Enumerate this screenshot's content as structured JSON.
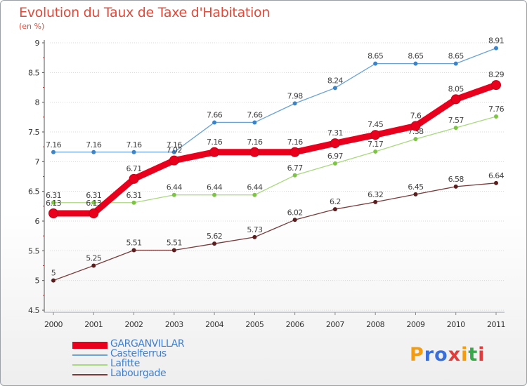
{
  "title": "Evolution du Taux de Taxe d'Habitation",
  "subtitle": "(en %)",
  "brand": {
    "letters": [
      "P",
      "r",
      "o",
      "x",
      "i",
      "t",
      "i"
    ],
    "colors": [
      "#f39c12",
      "#3a6fd8",
      "#3a6fd8",
      "#e23b3b",
      "#f39c12",
      "#3aa84a",
      "#e23b3b"
    ]
  },
  "chart_data": {
    "type": "line",
    "x": [
      "2000",
      "2001",
      "2002",
      "2003",
      "2004",
      "2005",
      "2006",
      "2007",
      "2008",
      "2009",
      "2010",
      "2011"
    ],
    "ylim": [
      4.5,
      9
    ],
    "yticks": [
      "4.5",
      "5",
      "5.5",
      "6",
      "6.5",
      "7",
      "7.5",
      "8",
      "8.5",
      "9"
    ],
    "legend_position": "bottom-left",
    "series": [
      {
        "name": "Castelferrus",
        "color": "#6aa3d6",
        "dot": "#3d84c6",
        "values": [
          7.16,
          7.16,
          7.16,
          7.16,
          7.66,
          7.66,
          7.98,
          8.24,
          8.65,
          8.65,
          8.65,
          8.91
        ],
        "labels": [
          "7.16",
          "7.16",
          "7.16",
          "7.16",
          "7.66",
          "7.66",
          "7.98",
          "8.24",
          "8.65",
          "8.65",
          "8.65",
          "8.91"
        ]
      },
      {
        "name": "Lafitte",
        "color": "#a9d97f",
        "dot": "#7cc443",
        "values": [
          6.31,
          6.31,
          6.31,
          6.44,
          6.44,
          6.44,
          6.77,
          6.97,
          7.17,
          7.38,
          7.57,
          7.76
        ],
        "labels": [
          "6.31",
          "6.31",
          "6.31",
          "6.44",
          "6.44",
          "6.44",
          "6.77",
          "6.97",
          "7.17",
          "7.38",
          "7.57",
          "7.76"
        ]
      },
      {
        "name": "Labourgade",
        "color": "#7a3a3a",
        "dot": "#5a1e1e",
        "values": [
          5,
          5.25,
          5.51,
          5.51,
          5.62,
          5.73,
          6.02,
          6.2,
          6.32,
          6.45,
          6.58,
          6.64
        ],
        "labels": [
          "5",
          "5.25",
          "5.51",
          "5.51",
          "5.62",
          "5.73",
          "6.02",
          "6.2",
          "6.32",
          "6.45",
          "6.58",
          "6.64"
        ]
      },
      {
        "name": "GARGANVILLAR",
        "color": "#e8001c",
        "dot": "#e8001c",
        "values": [
          6.13,
          6.13,
          6.71,
          7.02,
          7.16,
          7.16,
          7.16,
          7.31,
          7.45,
          7.6,
          8.05,
          8.29
        ],
        "labels": [
          "6.13",
          "6.13",
          "6.71",
          "7.02",
          "7.16",
          "7.16",
          "7.16",
          "7.31",
          "7.45",
          "7.6",
          "8.05",
          "8.29"
        ]
      }
    ]
  },
  "legend": [
    {
      "label": "GARGANVILLAR",
      "color": "#e8001c",
      "thick": true
    },
    {
      "label": "Castelferrus",
      "color": "#6aa3d6",
      "thick": false
    },
    {
      "label": "Lafitte",
      "color": "#a9d97f",
      "thick": false
    },
    {
      "label": "Labourgade",
      "color": "#7a3a3a",
      "thick": false
    }
  ]
}
